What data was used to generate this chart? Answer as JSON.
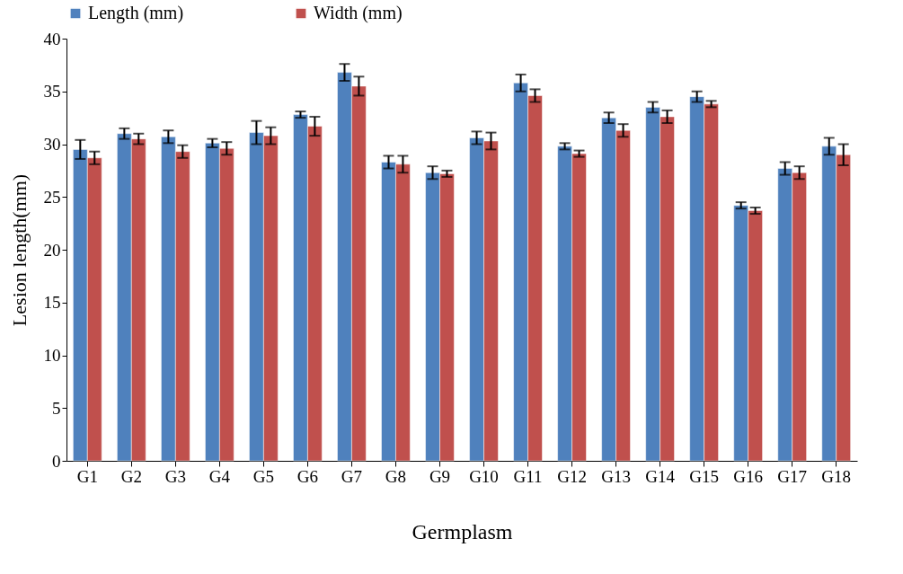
{
  "chart_data": {
    "type": "bar",
    "xlabel": "Germplasm",
    "ylabel": "Lesion length(mm)",
    "categories": [
      "G1",
      "G2",
      "G3",
      "G4",
      "G5",
      "G6",
      "G7",
      "G8",
      "G9",
      "G10",
      "G11",
      "G12",
      "G13",
      "G14",
      "G15",
      "G16",
      "G17",
      "G18"
    ],
    "series": [
      {
        "name": "Length (mm)",
        "color": "#4f81bd",
        "values": [
          29.5,
          31.0,
          30.7,
          30.1,
          31.1,
          32.8,
          36.8,
          28.3,
          27.3,
          30.6,
          35.8,
          29.8,
          32.5,
          33.5,
          34.5,
          24.2,
          27.7,
          29.8
        ],
        "errors": [
          0.9,
          0.5,
          0.6,
          0.4,
          1.1,
          0.3,
          0.8,
          0.6,
          0.6,
          0.6,
          0.8,
          0.3,
          0.5,
          0.5,
          0.5,
          0.3,
          0.6,
          0.8
        ]
      },
      {
        "name": "Width (mm)",
        "color": "#c0504d",
        "values": [
          28.7,
          30.5,
          29.3,
          29.6,
          30.8,
          31.7,
          35.5,
          28.1,
          27.2,
          30.3,
          34.6,
          29.1,
          31.3,
          32.6,
          33.8,
          23.7,
          27.3,
          29.0
        ],
        "errors": [
          0.6,
          0.5,
          0.6,
          0.6,
          0.8,
          0.9,
          0.9,
          0.8,
          0.3,
          0.8,
          0.6,
          0.3,
          0.6,
          0.6,
          0.3,
          0.3,
          0.6,
          1.0
        ]
      }
    ],
    "ylim": [
      0,
      40
    ],
    "yticks": [
      0,
      5,
      10,
      15,
      20,
      25,
      30,
      35,
      40
    ],
    "grid": false,
    "legend": "top"
  }
}
